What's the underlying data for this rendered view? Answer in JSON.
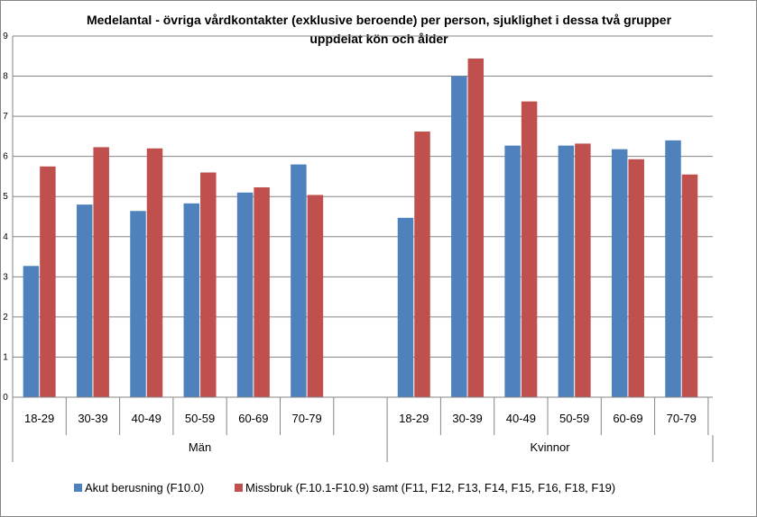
{
  "chart_data": {
    "type": "bar",
    "title": "Medelantal - övriga vårdkontakter (exklusive beroende) per person, sjuklighet i dessa två grupper",
    "title_line2": "uppdelat kön och ålder",
    "ylim": [
      0,
      9
    ],
    "yticks": [
      "0",
      "1",
      "2",
      "3",
      "4",
      "5",
      "6",
      "7",
      "8",
      "9"
    ],
    "grid": true,
    "legend_position": "bottom",
    "groups": [
      {
        "label": "Män",
        "categories": [
          "18-29",
          "30-39",
          "40-49",
          "50-59",
          "60-69",
          "70-79"
        ]
      },
      {
        "label": "Kvinnor",
        "categories": [
          "18-29",
          "30-39",
          "40-49",
          "50-59",
          "60-69",
          "70-79"
        ]
      }
    ],
    "series": [
      {
        "name": "Akut berusning (F10.0)",
        "color": "#4F81BD",
        "values": [
          3.27,
          4.8,
          4.64,
          4.83,
          5.1,
          5.8,
          4.47,
          8.0,
          6.27,
          6.27,
          6.18,
          6.4
        ]
      },
      {
        "name": "Missbruk (F.10.1-F10.9) samt (F11, F12, F13, F14, F15, F16, F18, F19)",
        "color": "#C0504D",
        "values": [
          5.75,
          6.23,
          6.2,
          5.6,
          5.23,
          5.04,
          6.62,
          8.44,
          7.37,
          6.32,
          5.93,
          5.55
        ]
      }
    ]
  }
}
